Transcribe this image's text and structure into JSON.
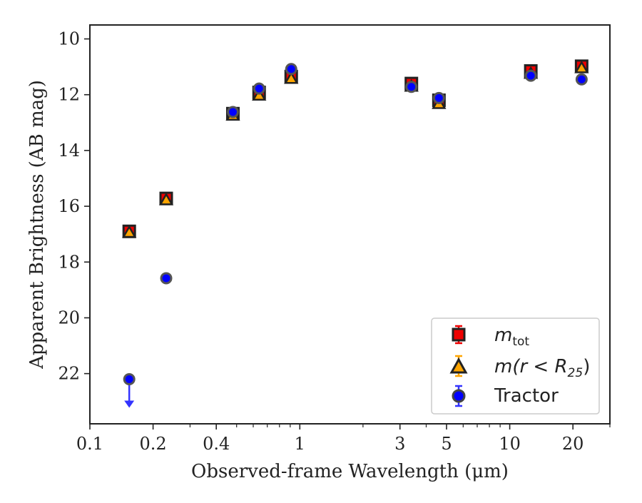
{
  "chart_data": {
    "type": "scatter",
    "title": "",
    "xlabel": "Observed-frame Wavelength (μm)",
    "ylabel": "Apparent Brightness (AB mag)",
    "xscale": "log",
    "xlim": [
      0.1,
      30
    ],
    "ylim": [
      23.8,
      9.5
    ],
    "y_inverted": true,
    "x_ticks": [
      {
        "value": 0.1,
        "label": "0.1"
      },
      {
        "value": 0.2,
        "label": "0.2"
      },
      {
        "value": 0.4,
        "label": "0.4"
      },
      {
        "value": 1,
        "label": "1"
      },
      {
        "value": 3,
        "label": "3"
      },
      {
        "value": 5,
        "label": "5"
      },
      {
        "value": 10,
        "label": "10"
      },
      {
        "value": 20,
        "label": "20"
      }
    ],
    "x_minor_ticks": [
      0.3,
      0.5,
      0.6,
      0.7,
      0.8,
      0.9,
      2,
      4,
      6,
      7,
      8,
      9,
      30
    ],
    "y_ticks": [
      {
        "value": 10,
        "label": "10"
      },
      {
        "value": 12,
        "label": "12"
      },
      {
        "value": 14,
        "label": "14"
      },
      {
        "value": 16,
        "label": "16"
      },
      {
        "value": 18,
        "label": "18"
      },
      {
        "value": 20,
        "label": "20"
      },
      {
        "value": 22,
        "label": "22"
      }
    ],
    "grid": false,
    "legend_position": "bottom-right",
    "series": [
      {
        "name": "m_tot",
        "marker": "square",
        "color": "#ee0000",
        "x": [
          0.154,
          0.231,
          0.48,
          0.64,
          0.91,
          3.4,
          4.6,
          12.6,
          22.0
        ],
        "y": [
          16.9,
          15.72,
          12.68,
          11.92,
          11.35,
          11.6,
          12.2,
          11.15,
          10.98
        ]
      },
      {
        "name": "m(r < R25)",
        "marker": "triangle",
        "color": "#ffa500",
        "x": [
          0.154,
          0.231,
          0.48,
          0.64,
          0.91,
          3.4,
          4.6,
          12.6,
          22.0
        ],
        "y": [
          16.92,
          15.75,
          12.72,
          12.0,
          11.4,
          11.68,
          12.3,
          11.22,
          11.02
        ]
      },
      {
        "name": "Tractor",
        "marker": "circle",
        "color": "#0000ff",
        "x": [
          0.231,
          0.48,
          0.64,
          0.91,
          3.4,
          4.6,
          12.6,
          22.0
        ],
        "y": [
          18.58,
          12.62,
          11.78,
          11.08,
          11.72,
          12.12,
          11.32,
          11.45
        ],
        "upper_limits": [
          {
            "x": 0.154,
            "y": 22.2
          }
        ]
      }
    ]
  },
  "legend": {
    "entries": [
      {
        "base": "m",
        "sub": "tot",
        "suffix": ""
      },
      {
        "base": "m(r < R",
        "sub": "25",
        "suffix": ")"
      },
      {
        "base": "Tractor",
        "sub": "",
        "suffix": ""
      }
    ]
  }
}
